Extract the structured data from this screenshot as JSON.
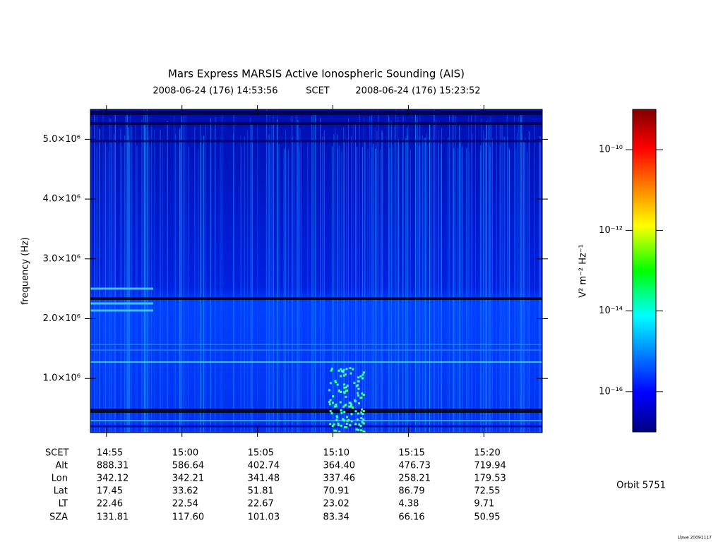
{
  "chart_data": {
    "type": "spectrogram",
    "title": "Mars Express MARSIS Active Ionospheric Sounding (AIS)",
    "start_time": "2008-06-24 (176) 14:53:56",
    "time_system": "SCET",
    "end_time": "2008-06-24 (176) 15:23:52",
    "ylabel": "frequency (Hz)",
    "xlim": [
      893.933,
      923.867
    ],
    "xticks": [
      {
        "value": 895,
        "label": "14:55"
      },
      {
        "value": 900,
        "label": "15:00"
      },
      {
        "value": 905,
        "label": "15:05"
      },
      {
        "value": 910,
        "label": "15:10"
      },
      {
        "value": 915,
        "label": "15:15"
      },
      {
        "value": 920,
        "label": "15:20"
      }
    ],
    "ylim": [
      94000,
      5500000
    ],
    "yticks": [
      {
        "value": 1000000,
        "label": "1.0×10⁶"
      },
      {
        "value": 2000000,
        "label": "2.0×10⁶"
      },
      {
        "value": 3000000,
        "label": "3.0×10⁶"
      },
      {
        "value": 4000000,
        "label": "4.0×10⁶"
      },
      {
        "value": 5000000,
        "label": "5.0×10⁶"
      }
    ],
    "colorbar": {
      "label": "V² m⁻² Hz⁻¹",
      "log": true,
      "lim": [
        1e-17,
        1e-09
      ],
      "ticks": [
        {
          "value": 1e-16,
          "label": "10⁻¹⁶"
        },
        {
          "value": 1e-14,
          "label": "10⁻¹⁴"
        },
        {
          "value": 1e-12,
          "label": "10⁻¹²"
        },
        {
          "value": 1e-10,
          "label": "10⁻¹⁰"
        }
      ]
    },
    "ephemeris": {
      "time_label": "SCET",
      "rows": [
        {
          "label": "Alt",
          "values": [
            "888.31",
            "586.64",
            "402.74",
            "364.40",
            "476.73",
            "719.94"
          ]
        },
        {
          "label": "Lon",
          "values": [
            "342.12",
            "342.21",
            "341.48",
            "337.46",
            "258.21",
            "179.53"
          ]
        },
        {
          "label": "Lat",
          "values": [
            "17.45",
            "33.62",
            "51.81",
            "70.91",
            "86.79",
            "72.55"
          ]
        },
        {
          "label": "LT",
          "values": [
            "22.46",
            "22.54",
            "22.67",
            "23.02",
            "4.38",
            "9.71"
          ]
        },
        {
          "label": "SZA",
          "values": [
            "131.81",
            "117.60",
            "101.03",
            "83.34",
            "66.16",
            "50.95"
          ]
        }
      ]
    },
    "orbit": "Orbit 5751",
    "footnote": "Llave 20091117"
  }
}
